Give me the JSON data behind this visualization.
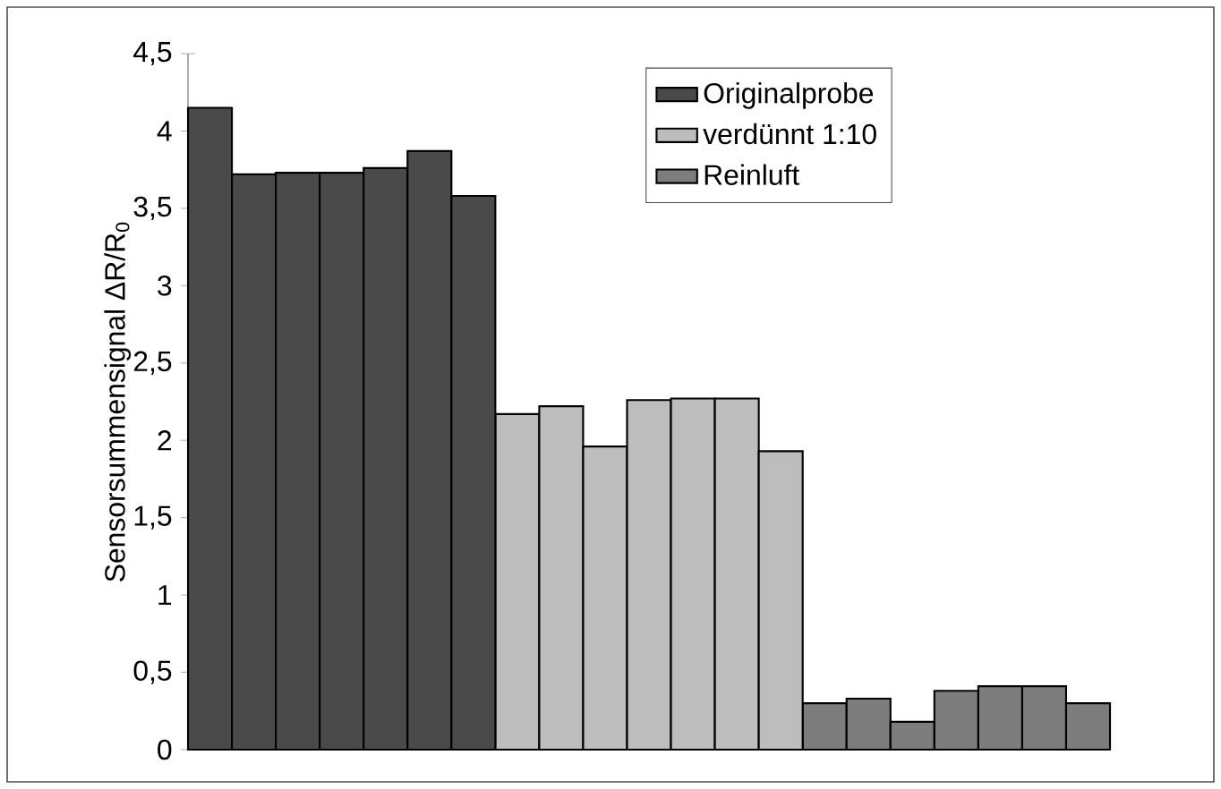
{
  "chart_data": {
    "type": "bar",
    "ylabel": "Sensorsummensignal ΔR/R$_{0}$",
    "categories": [
      null,
      null,
      null,
      null,
      null,
      null,
      null,
      null,
      null,
      null,
      null,
      null,
      null,
      null,
      null,
      null,
      null,
      null,
      null,
      null,
      null
    ],
    "series": [
      {
        "name": "Originalprobe",
        "color": "#4a4a4a",
        "values": [
          4.15,
          3.72,
          3.73,
          3.73,
          3.76,
          3.87,
          3.58,
          null,
          null,
          null,
          null,
          null,
          null,
          null,
          null,
          null,
          null,
          null,
          null,
          null,
          null
        ]
      },
      {
        "name": "verdünnt 1:10",
        "color": "#bdbdbd",
        "values": [
          null,
          null,
          null,
          null,
          null,
          null,
          null,
          2.17,
          2.22,
          1.96,
          2.26,
          2.27,
          2.27,
          1.93,
          null,
          null,
          null,
          null,
          null,
          null,
          null
        ]
      },
      {
        "name": "Reinluft",
        "color": "#7d7d7d",
        "values": [
          null,
          null,
          null,
          null,
          null,
          null,
          null,
          null,
          null,
          null,
          null,
          null,
          null,
          null,
          0.3,
          0.33,
          0.18,
          0.38,
          0.41,
          0.41,
          0.3
        ]
      }
    ],
    "ylim": [
      0,
      4.5
    ],
    "yticks": [
      {
        "value": 0,
        "label": "0"
      },
      {
        "value": 0.5,
        "label": "0,5"
      },
      {
        "value": 1,
        "label": "1"
      },
      {
        "value": 1.5,
        "label": "1,5"
      },
      {
        "value": 2,
        "label": "2"
      },
      {
        "value": 2.5,
        "label": "2,5"
      },
      {
        "value": 3,
        "label": "3"
      },
      {
        "value": 3.5,
        "label": "3,5"
      },
      {
        "value": 4,
        "label": "4"
      },
      {
        "value": 4.5,
        "label": "4,5"
      }
    ],
    "stacked": true,
    "legend": "top right",
    "grid": false
  }
}
